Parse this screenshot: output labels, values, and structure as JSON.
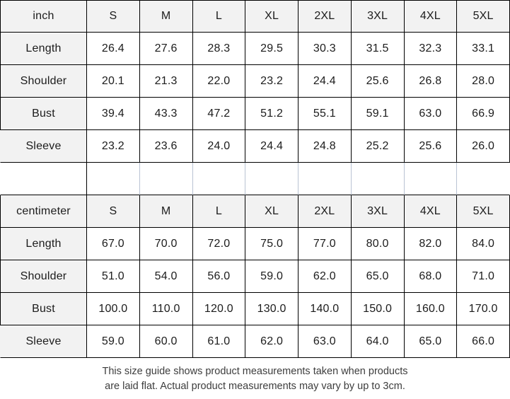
{
  "chart_data": {
    "type": "table",
    "tables": [
      {
        "unit_label": "inch",
        "columns": [
          "inch",
          "S",
          "M",
          "L",
          "XL",
          "2XL",
          "3XL",
          "4XL",
          "5XL"
        ],
        "rows": [
          {
            "label": "Length",
            "values": [
              "26.4",
              "27.6",
              "28.3",
              "29.5",
              "30.3",
              "31.5",
              "32.3",
              "33.1"
            ]
          },
          {
            "label": "Shoulder",
            "values": [
              "20.1",
              "21.3",
              "22.0",
              "23.2",
              "24.4",
              "25.6",
              "26.8",
              "28.0"
            ]
          },
          {
            "label": "Bust",
            "values": [
              "39.4",
              "43.3",
              "47.2",
              "51.2",
              "55.1",
              "59.1",
              "63.0",
              "66.9"
            ]
          },
          {
            "label": "Sleeve",
            "values": [
              "23.2",
              "23.6",
              "24.0",
              "24.4",
              "24.8",
              "25.2",
              "25.6",
              "26.0"
            ]
          }
        ]
      },
      {
        "unit_label": "centimeter",
        "columns": [
          "centimeter",
          "S",
          "M",
          "L",
          "XL",
          "2XL",
          "3XL",
          "4XL",
          "5XL"
        ],
        "rows": [
          {
            "label": "Length",
            "values": [
              "67.0",
              "70.0",
              "72.0",
              "75.0",
              "77.0",
              "80.0",
              "82.0",
              "84.0"
            ]
          },
          {
            "label": "Shoulder",
            "values": [
              "51.0",
              "54.0",
              "56.0",
              "59.0",
              "62.0",
              "65.0",
              "68.0",
              "71.0"
            ]
          },
          {
            "label": "Bust",
            "values": [
              "100.0",
              "110.0",
              "120.0",
              "130.0",
              "140.0",
              "150.0",
              "160.0",
              "170.0"
            ]
          },
          {
            "label": "Sleeve",
            "values": [
              "59.0",
              "60.0",
              "61.0",
              "62.0",
              "63.0",
              "64.0",
              "65.0",
              "66.0"
            ]
          }
        ]
      }
    ],
    "layout": "two stacked size tables separated by an empty spacer row; grid lines on"
  },
  "footnote": {
    "line1": "This size guide shows product measurements taken when products",
    "line2": "are laid flat. Actual product measurements may vary by up to 3cm."
  },
  "colors": {
    "header_and_label_bg": "#f2f2f2",
    "grid_border": "#000000",
    "spacer_divider": "#b9c3d3",
    "cell_bg": "#ffffff",
    "text": "#1c1c1c",
    "footnote_text": "#3d3d3d"
  }
}
